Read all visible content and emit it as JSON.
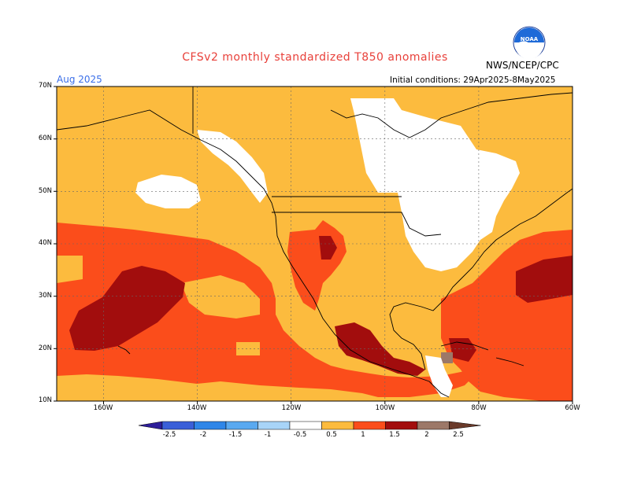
{
  "title": "CFSv2 monthly standardized T850 anomalies",
  "org": "NWS/NCEP/CPC",
  "month": "Aug 2025",
  "initial_conditions": "Initial conditions: 29Apr2025-8May2025",
  "logo_text": "NOAA",
  "lat_labels": [
    "70N",
    "60N",
    "50N",
    "40N",
    "30N",
    "20N",
    "10N"
  ],
  "lon_labels": [
    "160W",
    "140W",
    "120W",
    "100W",
    "80W",
    "60W"
  ],
  "colorbar": {
    "labels": [
      "-2.5",
      "-2",
      "-1.5",
      "-1",
      "-0.5",
      "0.5",
      "1",
      "1.5",
      "2",
      "2.5"
    ],
    "colors": [
      "#2e1e9a",
      "#3a5fd8",
      "#2f86e8",
      "#5aa9f0",
      "#a8d4f8",
      "#ffffff",
      "#fcbb3e",
      "#fb4d1b",
      "#a20d0d",
      "#9c7868",
      "#6a3a2a"
    ]
  },
  "colors": {
    "anom_0_5_1": "#fcbb3e",
    "anom_1_1_5": "#fb4d1b",
    "anom_1_5_2": "#a20d0d",
    "neutral": "#ffffff"
  }
}
